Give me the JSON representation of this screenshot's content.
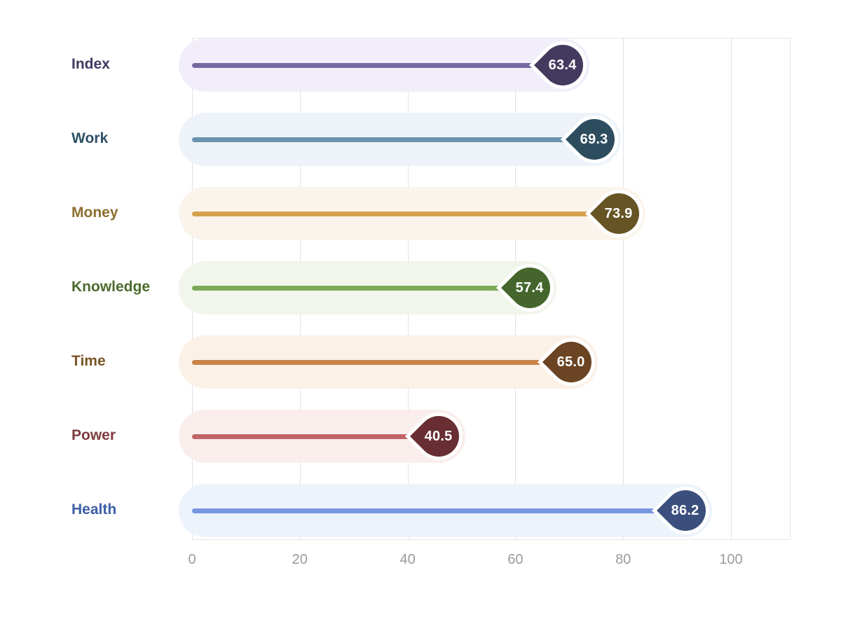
{
  "page": {
    "background": "#ffffff"
  },
  "chart_data": {
    "type": "bar",
    "variant": "horizontal-lollipop",
    "title": "",
    "xlabel": "",
    "ylabel": "",
    "legend": "none",
    "grid": "vertical",
    "xlim": [
      0,
      111
    ],
    "xticks": [
      "0",
      "20",
      "40",
      "60",
      "80",
      "100"
    ],
    "xtick_values": [
      0,
      20,
      40,
      60,
      80,
      100
    ],
    "categories": [
      "Index",
      "Work",
      "Money",
      "Knowledge",
      "Time",
      "Power",
      "Health"
    ],
    "values": [
      63.4,
      69.3,
      73.9,
      57.4,
      65.0,
      40.5,
      86.2
    ],
    "value_labels": [
      "63.4",
      "69.3",
      "73.9",
      "57.4",
      "65.0",
      "40.5",
      "86.2"
    ],
    "rows": [
      {
        "label": "Index",
        "value": 63.4,
        "value_label": "63.4",
        "line_color": "#7569a0",
        "marker_color": "#443a5f",
        "label_color": "#413a63",
        "band_color": "#f1edf8"
      },
      {
        "label": "Work",
        "value": 69.3,
        "value_label": "69.3",
        "line_color": "#6a93ae",
        "marker_color": "#2d4d5f",
        "label_color": "#2d5066",
        "band_color": "#ecf2f8"
      },
      {
        "label": "Money",
        "value": 73.9,
        "value_label": "73.9",
        "line_color": "#d4a24c",
        "marker_color": "#665424",
        "label_color": "#8c6e2e",
        "band_color": "#faf3ea"
      },
      {
        "label": "Knowledge",
        "value": 57.4,
        "value_label": "57.4",
        "line_color": "#7da957",
        "marker_color": "#44662c",
        "label_color": "#4c6b2f",
        "band_color": "#f0f4ea"
      },
      {
        "label": "Time",
        "value": 65.0,
        "value_label": "65.0",
        "line_color": "#c98349",
        "marker_color": "#6b4423",
        "label_color": "#7a5528",
        "band_color": "#fbf0e5"
      },
      {
        "label": "Power",
        "value": 40.5,
        "value_label": "40.5",
        "line_color": "#c16566",
        "marker_color": "#682e31",
        "label_color": "#7e3c40",
        "band_color": "#faedec"
      },
      {
        "label": "Health",
        "value": 86.2,
        "value_label": "86.2",
        "line_color": "#7696e0",
        "marker_color": "#3a4f7d",
        "label_color": "#3c5ea6",
        "band_color": "#ecf2fb"
      }
    ],
    "axis": {
      "tick_color": "#9b9b9b",
      "grid_color": "#e2e2e7",
      "border_color": "#e6e6e8"
    }
  }
}
